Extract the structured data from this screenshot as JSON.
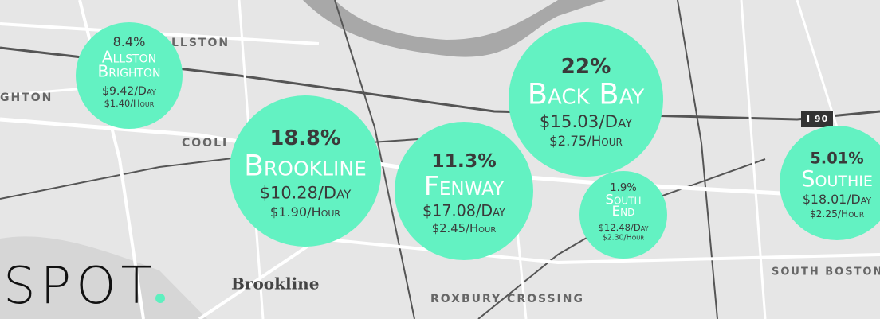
{
  "logo": {
    "text": "SPOT"
  },
  "map_labels": [
    "LLSTON",
    "GHTON",
    "COOLI",
    "Brookline",
    "ROXBURY CROSSING",
    "SOUTH BOSTON",
    "I 90"
  ],
  "bubbles": [
    {
      "percent": "8.4%",
      "name_lines": [
        "Allston",
        "Brighton"
      ],
      "day": "$9.42/Day",
      "hour": "$1.40/Hour"
    },
    {
      "percent": "18.8%",
      "name_lines": [
        "Brookline"
      ],
      "day": "$10.28/Day",
      "hour": "$1.90/Hour"
    },
    {
      "percent": "11.3%",
      "name_lines": [
        "Fenway"
      ],
      "day": "$17.08/Day",
      "hour": "$2.45/Hour"
    },
    {
      "percent": "22%",
      "name_lines": [
        "Back Bay"
      ],
      "day": "$15.03/Day",
      "hour": "$2.75/Hour"
    },
    {
      "percent": "1.9%",
      "name_lines": [
        "South",
        "End"
      ],
      "day": "$12.48/Day",
      "hour": "$2.30/Hour"
    },
    {
      "percent": "5.01%",
      "name_lines": [
        "Southie"
      ],
      "day": "$18.01/Day",
      "hour": "$2.25/Hour"
    }
  ]
}
